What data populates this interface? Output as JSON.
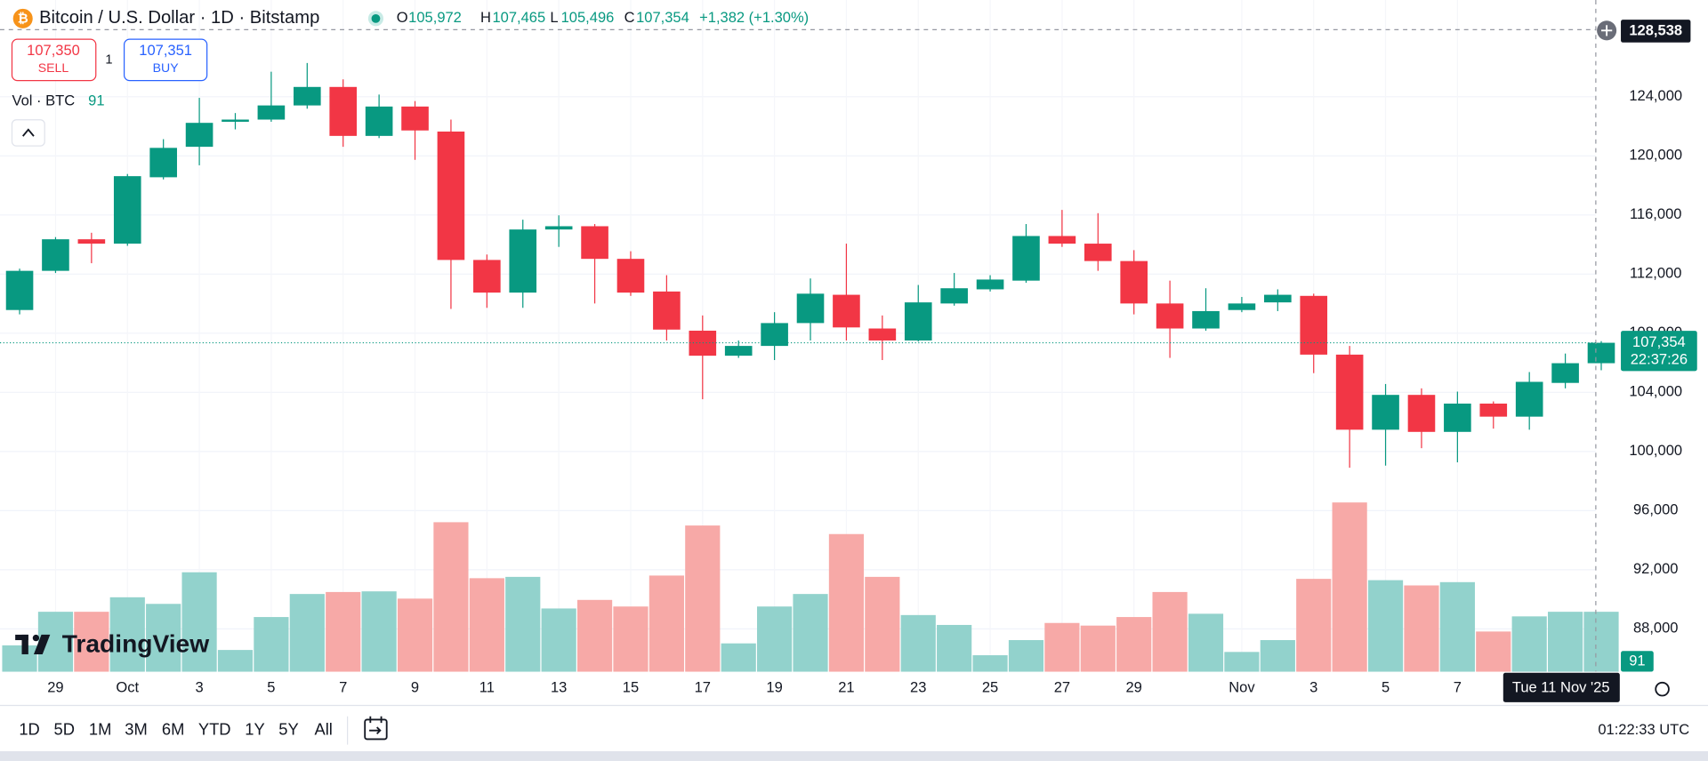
{
  "header": {
    "symbol": "Bitcoin / U.S. Dollar · 1D · Bitstamp",
    "ohlc": [
      {
        "key": "O",
        "value": "105,972"
      },
      {
        "key": "H",
        "value": "107,465"
      },
      {
        "key": "L",
        "value": "105,496"
      },
      {
        "key": "C",
        "value": "107,354"
      }
    ],
    "change": "+1,382 (+1.30%)"
  },
  "trade": {
    "sell_price": "107,350",
    "sell": "SELL",
    "spread": "1",
    "buy_price": "107,351",
    "buy": "BUY"
  },
  "logo": "TradingView",
  "toolbar": {
    "ranges": [
      "1D",
      "5D",
      "1M",
      "3M",
      "6M",
      "YTD",
      "1Y",
      "5Y",
      "All"
    ],
    "clock": "01:22:33 UTC"
  },
  "chart_data": {
    "type": "candlestick",
    "categories": [
      null,
      "29",
      null,
      "Oct",
      null,
      "3",
      null,
      "5",
      null,
      "7",
      null,
      "9",
      null,
      "11",
      null,
      "13",
      null,
      "15",
      null,
      "17",
      null,
      "19",
      null,
      "21",
      null,
      "23",
      null,
      "25",
      null,
      "27",
      null,
      "29",
      null,
      null,
      "Nov",
      null,
      "3",
      null,
      "5",
      null,
      "7",
      null,
      null,
      null,
      null
    ],
    "open": [
      109570,
      112221,
      114356,
      114061,
      118552,
      120613,
      122306,
      122454,
      123411,
      124662,
      121350,
      123337,
      121644,
      112957,
      110748,
      115018,
      115239,
      113031,
      110822,
      108172,
      106478,
      107141,
      108687,
      110601,
      108319,
      107509,
      110012,
      110969,
      111558,
      114577,
      114061,
      112883,
      110012,
      108319,
      109570,
      110086,
      110527,
      106552,
      101472,
      103828,
      101325,
      103239,
      102356,
      104638,
      105972
    ],
    "high": [
      112368,
      114503,
      114797,
      118773,
      121129,
      123926,
      122896,
      125693,
      126282,
      125177,
      124147,
      123705,
      122454,
      113325,
      115681,
      115975,
      115386,
      113546,
      111926,
      109202,
      107509,
      109423,
      111705,
      114061,
      109202,
      111264,
      112074,
      111926,
      115386,
      116343,
      116122,
      113620,
      111558,
      111043,
      110454,
      110969,
      110675,
      107141,
      104564,
      104270,
      104049,
      103386,
      105374,
      106625,
      107465
    ],
    "low": [
      109276,
      112074,
      112736,
      113914,
      118405,
      119362,
      121791,
      122306,
      123190,
      120613,
      121203,
      119730,
      109644,
      109718,
      109718,
      113840,
      110012,
      110527,
      107509,
      103533,
      106331,
      106184,
      107509,
      107509,
      106184,
      107436,
      109865,
      110822,
      111411,
      113840,
      112221,
      109276,
      106331,
      108172,
      109423,
      109497,
      105300,
      98896,
      99043,
      100221,
      99264,
      101546,
      101472,
      104270,
      105496
    ],
    "close": [
      112221,
      114356,
      114061,
      118626,
      120540,
      122233,
      122454,
      123411,
      124662,
      121350,
      123337,
      121718,
      112957,
      110748,
      115018,
      115239,
      113031,
      110748,
      108245,
      106478,
      107141,
      108687,
      110675,
      108392,
      107509,
      110086,
      111043,
      111632,
      114577,
      114061,
      112883,
      110012,
      108319,
      109497,
      110012,
      110601,
      106552,
      101472,
      103828,
      101325,
      103239,
      102356,
      104711,
      105972,
      107354
    ],
    "up_color": "#089981",
    "down_color": "#f23645",
    "volume": {
      "name": "Vol · BTC",
      "up_color": "#92d2cc",
      "down_color": "#f7a9a7",
      "values": [
        40,
        91,
        91,
        113,
        103,
        151,
        33,
        83,
        118,
        121,
        122,
        111,
        227,
        142,
        144,
        96,
        109,
        99,
        146,
        222,
        43,
        99,
        118,
        209,
        144,
        86,
        71,
        25,
        48,
        74,
        70,
        83,
        121,
        88,
        30,
        48,
        141,
        257,
        139,
        131,
        136,
        61,
        84,
        91,
        91
      ]
    },
    "volume_ylim": [
      0,
      1010
    ],
    "ylim": [
      85100,
      130100
    ],
    "yticks": [
      {
        "value": 88000,
        "label": "88,000"
      },
      {
        "value": 92000,
        "label": "92,000"
      },
      {
        "value": 96000,
        "label": "96,000"
      },
      {
        "value": 100000,
        "label": "100,000"
      },
      {
        "value": 104000,
        "label": "104,000"
      },
      {
        "value": 108000,
        "label": "108,000"
      },
      {
        "value": 112000,
        "label": "112,000"
      },
      {
        "value": 116000,
        "label": "116,000"
      },
      {
        "value": 120000,
        "label": "120,000"
      },
      {
        "value": 124000,
        "label": "124,000"
      }
    ],
    "grid": true,
    "last_price": {
      "value": 107354,
      "label": "107,354",
      "countdown": "22:37:26"
    },
    "crosshair": {
      "price": {
        "value": 128538,
        "label": "128,538"
      },
      "date": "Tue 11 Nov '25"
    }
  }
}
